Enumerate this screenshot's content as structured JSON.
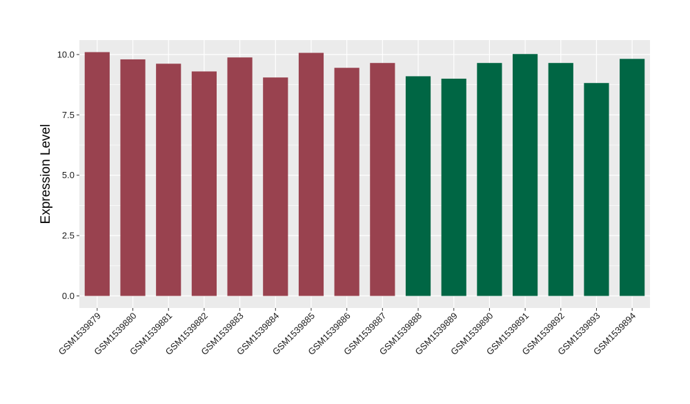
{
  "chart_data": {
    "type": "bar",
    "title": "",
    "xlabel": "",
    "ylabel": "Expression Level",
    "ylim": [
      -0.5,
      10.6
    ],
    "yticks": [
      0.0,
      2.5,
      5.0,
      7.5,
      10.0
    ],
    "ytick_labels": [
      "0.0",
      "2.5",
      "5.0",
      "7.5",
      "10.0"
    ],
    "grid": true,
    "legend": "none",
    "categories": [
      "GSM1539879",
      "GSM1539880",
      "GSM1539881",
      "GSM1539882",
      "GSM1539883",
      "GSM1539884",
      "GSM1539885",
      "GSM1539886",
      "GSM1539887",
      "GSM1539888",
      "GSM1539889",
      "GSM1539890",
      "GSM1539891",
      "GSM1539892",
      "GSM1539893",
      "GSM1539894"
    ],
    "values": [
      10.1,
      9.8,
      9.62,
      9.3,
      9.88,
      9.05,
      10.07,
      9.45,
      9.65,
      9.1,
      9.0,
      9.65,
      10.02,
      9.65,
      8.82,
      9.82
    ],
    "bar_colors": [
      "#99424F",
      "#99424F",
      "#99424F",
      "#99424F",
      "#99424F",
      "#99424F",
      "#99424F",
      "#99424F",
      "#99424F",
      "#006644",
      "#006644",
      "#006644",
      "#006644",
      "#006644",
      "#006644",
      "#006644"
    ],
    "panel_background": "#EBEBEB",
    "grid_color": "#FFFFFF"
  }
}
